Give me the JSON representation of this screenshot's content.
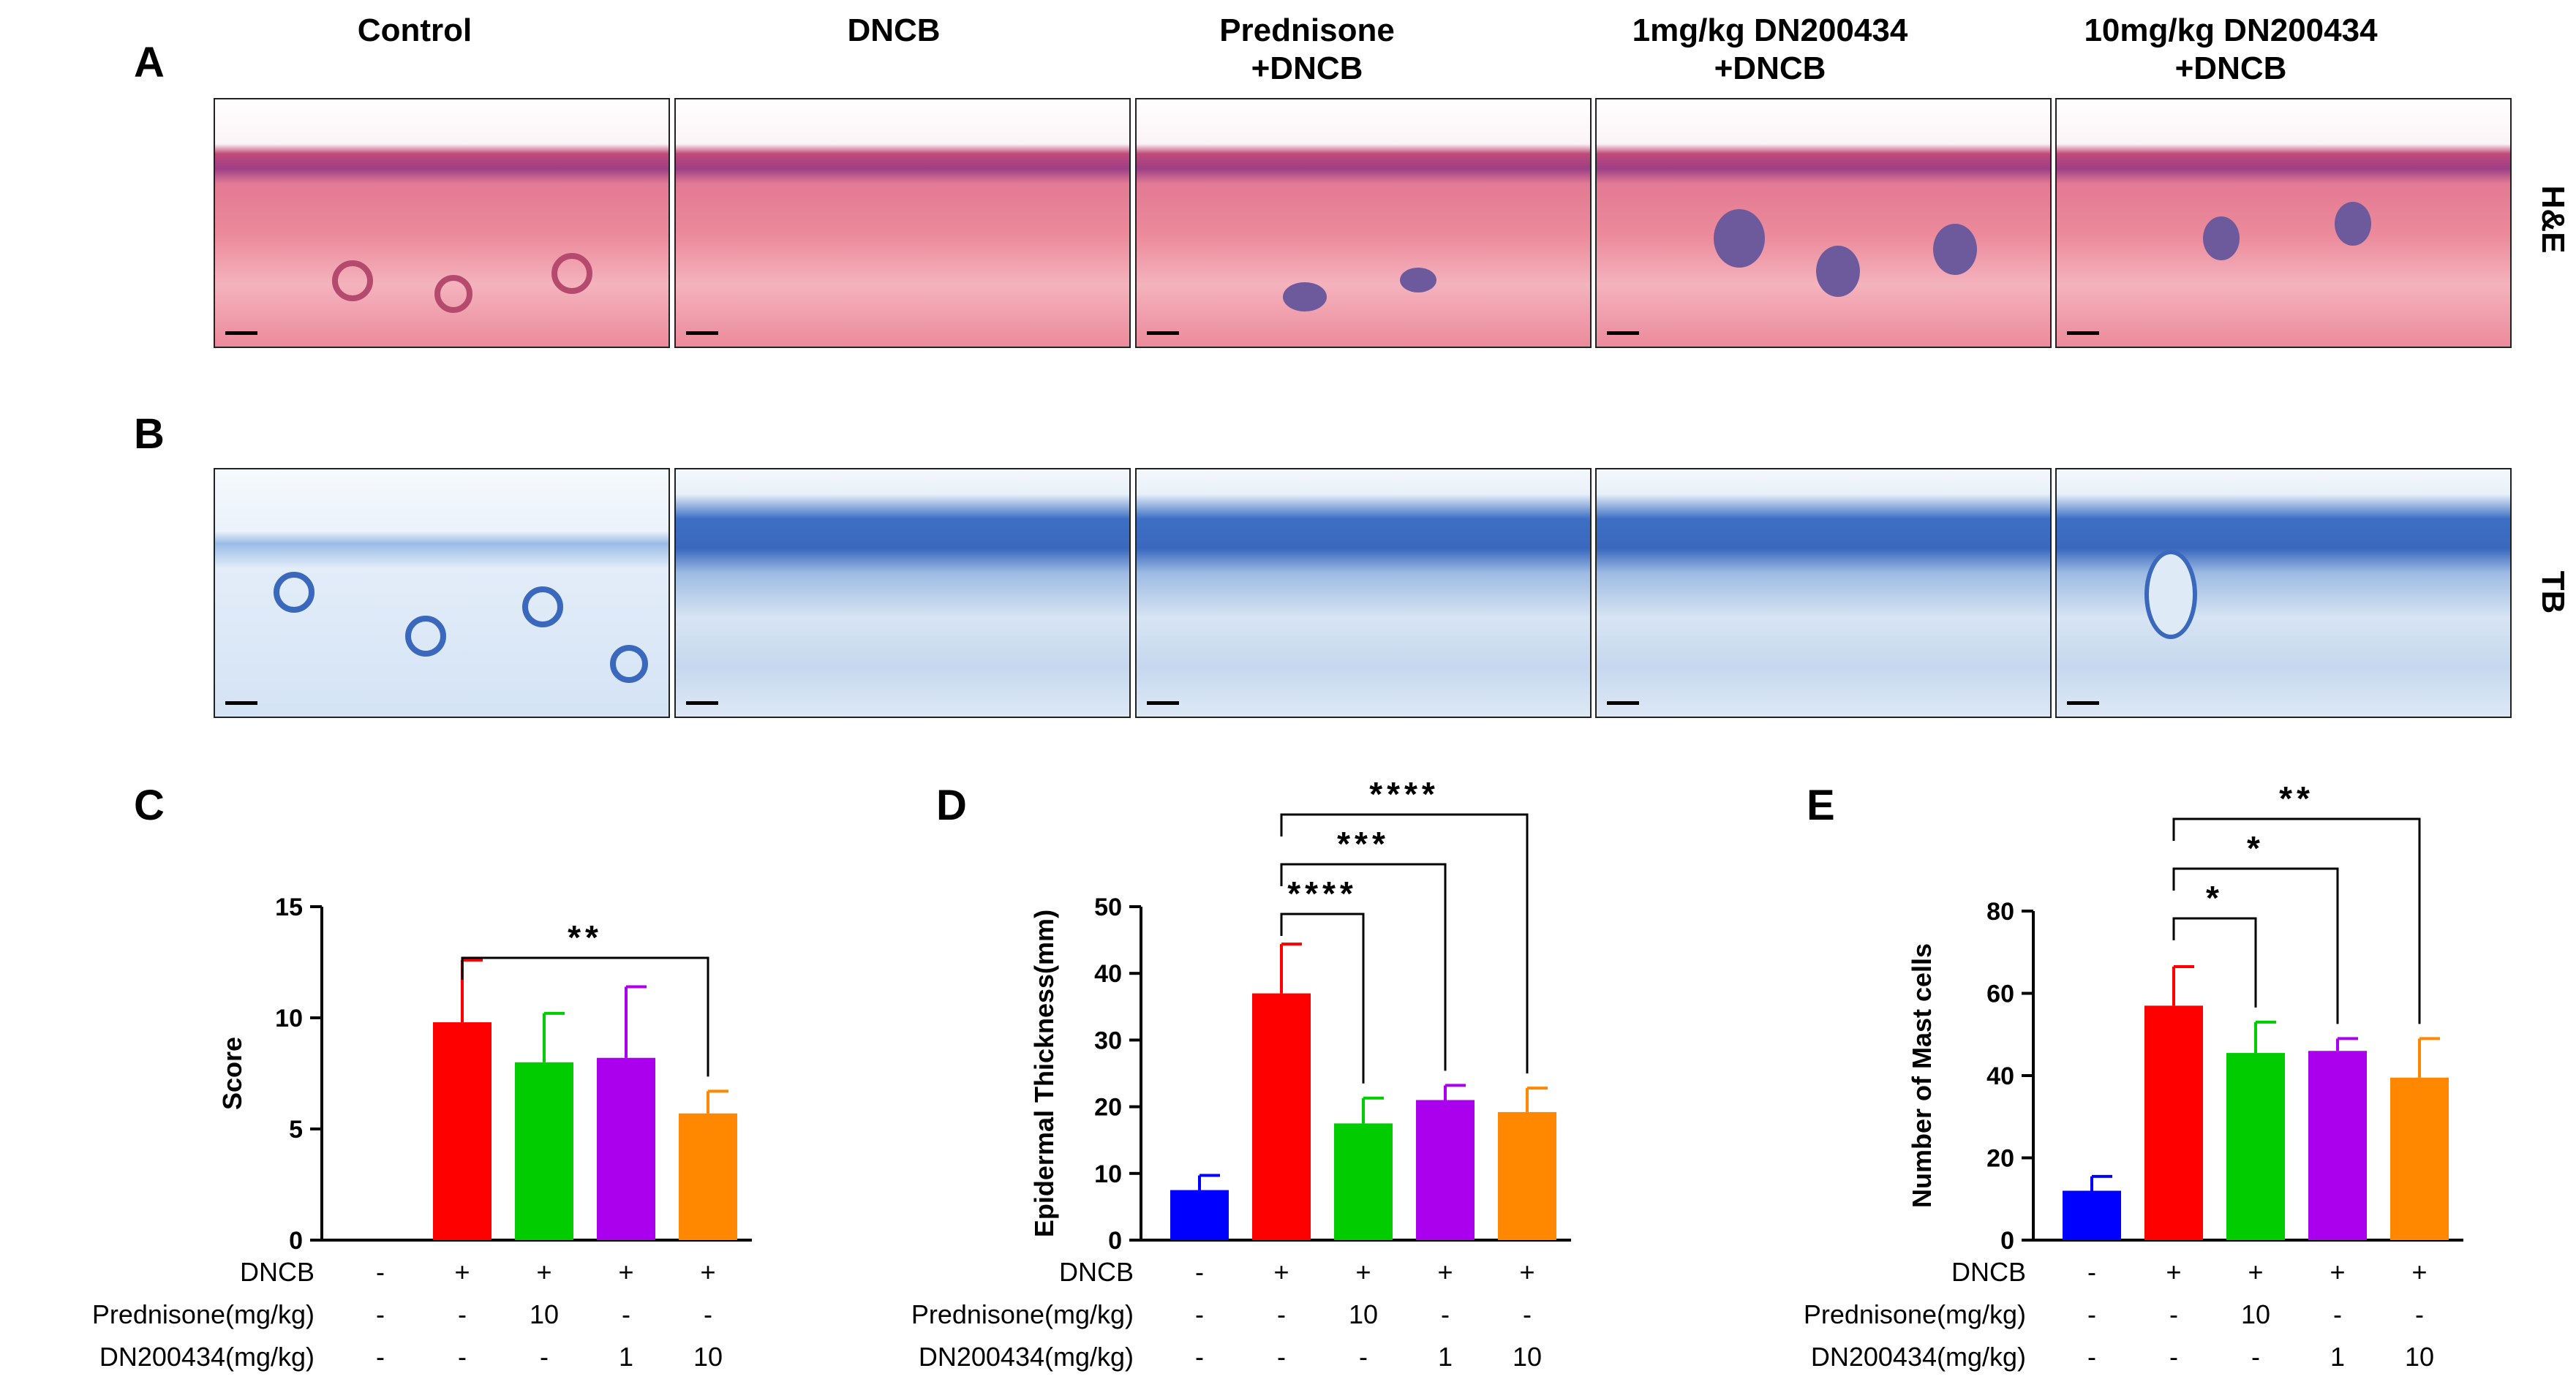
{
  "figure": {
    "panels": {
      "A": "A",
      "B": "B",
      "C": "C",
      "D": "D",
      "E": "E"
    },
    "columns": [
      "Control",
      "DNCB",
      "Prednisone\n+DNCB",
      "1mg/kg DN200434\n+DNCB",
      "10mg/kg DN200434\n+DNCB"
    ],
    "row_labels": {
      "he": "H&E",
      "tb": "TB"
    }
  },
  "colors": {
    "control": "#0000ff",
    "dncb": "#ff0000",
    "prednisone": "#00cc00",
    "dn_low": "#aa00ee",
    "dn_high": "#ff8800"
  },
  "conditions": {
    "rows": [
      {
        "label": "DNCB",
        "values": [
          "-",
          "+",
          "+",
          "+",
          "+"
        ]
      },
      {
        "label": "Prednisone(mg/kg)",
        "values": [
          "-",
          "-",
          "10",
          "-",
          "-"
        ]
      },
      {
        "label": "DN200434(mg/kg)",
        "values": [
          "-",
          "-",
          "-",
          "1",
          "10"
        ]
      }
    ]
  },
  "chart_data": [
    {
      "id": "C",
      "type": "bar",
      "title": "",
      "ylabel": "Score",
      "ylim": [
        0,
        15
      ],
      "yticks": [
        "0",
        "5",
        "10",
        "15"
      ],
      "categories": [
        "Control",
        "DNCB",
        "Prednisone+DNCB",
        "1mg/kg DN200434+DNCB",
        "10mg/kg DN200434+DNCB"
      ],
      "values": [
        0,
        9.8,
        8.0,
        8.2,
        5.7
      ],
      "errors": [
        0,
        2.8,
        2.2,
        3.2,
        1.0
      ],
      "significance": [
        {
          "from": 1,
          "to": 4,
          "label": "**"
        }
      ]
    },
    {
      "id": "D",
      "type": "bar",
      "title": "",
      "ylabel": "Epidermal Thickness(mm)",
      "ylim": [
        0,
        50
      ],
      "yticks": [
        "0",
        "10",
        "20",
        "30",
        "40",
        "50"
      ],
      "categories": [
        "Control",
        "DNCB",
        "Prednisone+DNCB",
        "1mg/kg DN200434+DNCB",
        "10mg/kg DN200434+DNCB"
      ],
      "values": [
        7.5,
        37.0,
        17.5,
        21.0,
        19.2
      ],
      "errors": [
        2.2,
        7.4,
        3.8,
        2.2,
        3.6
      ],
      "significance": [
        {
          "from": 1,
          "to": 2,
          "label": "****"
        },
        {
          "from": 1,
          "to": 3,
          "label": "***"
        },
        {
          "from": 1,
          "to": 4,
          "label": "****"
        }
      ]
    },
    {
      "id": "E",
      "type": "bar",
      "title": "",
      "ylabel": "Number of Mast cells",
      "ylim": [
        0,
        80
      ],
      "yticks": [
        "0",
        "20",
        "40",
        "60",
        "80"
      ],
      "categories": [
        "Control",
        "DNCB",
        "Prednisone+DNCB",
        "1mg/kg DN200434+DNCB",
        "10mg/kg DN200434+DNCB"
      ],
      "values": [
        12,
        57,
        45.5,
        46,
        39.5
      ],
      "errors": [
        3.5,
        9.5,
        7.5,
        3.0,
        9.5
      ],
      "significance": [
        {
          "from": 1,
          "to": 2,
          "label": "*"
        },
        {
          "from": 1,
          "to": 3,
          "label": "*"
        },
        {
          "from": 1,
          "to": 4,
          "label": "**"
        }
      ]
    }
  ]
}
